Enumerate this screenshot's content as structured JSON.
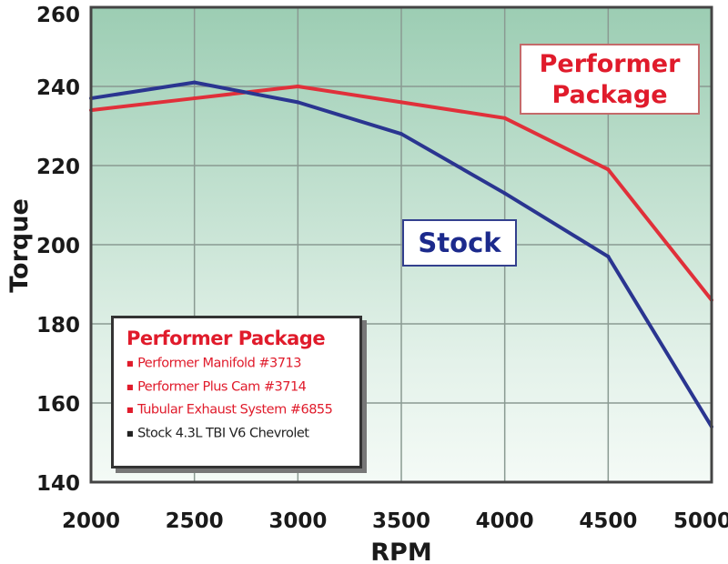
{
  "chart_data": {
    "type": "line",
    "xlabel": "RPM",
    "ylabel": "Torque",
    "x": [
      2000,
      2500,
      3000,
      3500,
      4000,
      4500,
      5000
    ],
    "xlim": [
      2000,
      5000
    ],
    "ylim": [
      140,
      260
    ],
    "xticks": [
      "2000",
      "2500",
      "3000",
      "3500",
      "4000",
      "4500",
      "5000"
    ],
    "yticks": [
      "140",
      "160",
      "180",
      "200",
      "220",
      "240",
      "260"
    ],
    "grid": true,
    "series": [
      {
        "name": "Performer Package",
        "color": "#e0303a",
        "values": [
          234,
          237,
          240,
          236,
          232,
          219,
          186
        ]
      },
      {
        "name": "Stock",
        "color": "#2a3590",
        "values": [
          237,
          241,
          236,
          228,
          213,
          197,
          154
        ]
      }
    ],
    "annotations": {
      "performer_line1": "Performer",
      "performer_line2": "Package",
      "stock": "Stock"
    },
    "legend": {
      "title": "Performer Package",
      "items": [
        "Performer Manifold #3713",
        "Performer Plus Cam #3714",
        "Tubular Exhaust System #6855",
        "Stock 4.3L TBI V6 Chevrolet"
      ],
      "placement": "bottom-left"
    }
  }
}
